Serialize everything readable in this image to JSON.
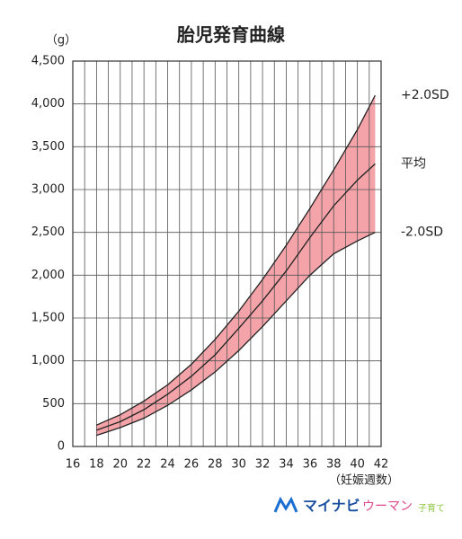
{
  "chart_data": {
    "type": "line",
    "title": "胎児発育曲線",
    "y_unit": "（g）",
    "x_label": "（妊娠週数）",
    "logo": {
      "main": "マイナビ",
      "sub": "ウーマン",
      "tag": "子育て"
    },
    "x": [
      18,
      20,
      22,
      24,
      26,
      28,
      30,
      32,
      34,
      36,
      38,
      40,
      41.5
    ],
    "series": [
      {
        "name": "+2.0SD",
        "color": "#222222",
        "values": [
          250,
          370,
          530,
          720,
          960,
          1250,
          1580,
          1950,
          2350,
          2780,
          3230,
          3700,
          4100
        ]
      },
      {
        "name": "平均",
        "color": "#222222",
        "values": [
          190,
          290,
          430,
          610,
          820,
          1070,
          1380,
          1700,
          2050,
          2440,
          2810,
          3110,
          3300
        ]
      },
      {
        "name": "-2.0SD",
        "color": "#222222",
        "values": [
          130,
          220,
          330,
          480,
          660,
          870,
          1120,
          1400,
          1700,
          2000,
          2250,
          2400,
          2500
        ]
      }
    ],
    "band_color": "#f4a3a8",
    "xlim": [
      16,
      42
    ],
    "xticks": [
      16,
      18,
      20,
      22,
      24,
      26,
      28,
      30,
      32,
      34,
      36,
      38,
      40,
      42
    ],
    "ylim": [
      0,
      4500
    ],
    "yticks": [
      0,
      500,
      {
        "value": 1000,
        "label": "1,000"
      },
      {
        "value": 1500,
        "label": "1,500"
      },
      {
        "value": 2000,
        "label": "2,000"
      },
      {
        "value": 2500,
        "label": "2,500"
      },
      {
        "value": 3000,
        "label": "3,000"
      },
      {
        "value": 3500,
        "label": "3,500"
      },
      {
        "value": 4000,
        "label": "4,000"
      },
      {
        "value": 4500,
        "label": "4,500"
      }
    ],
    "grid": true
  }
}
